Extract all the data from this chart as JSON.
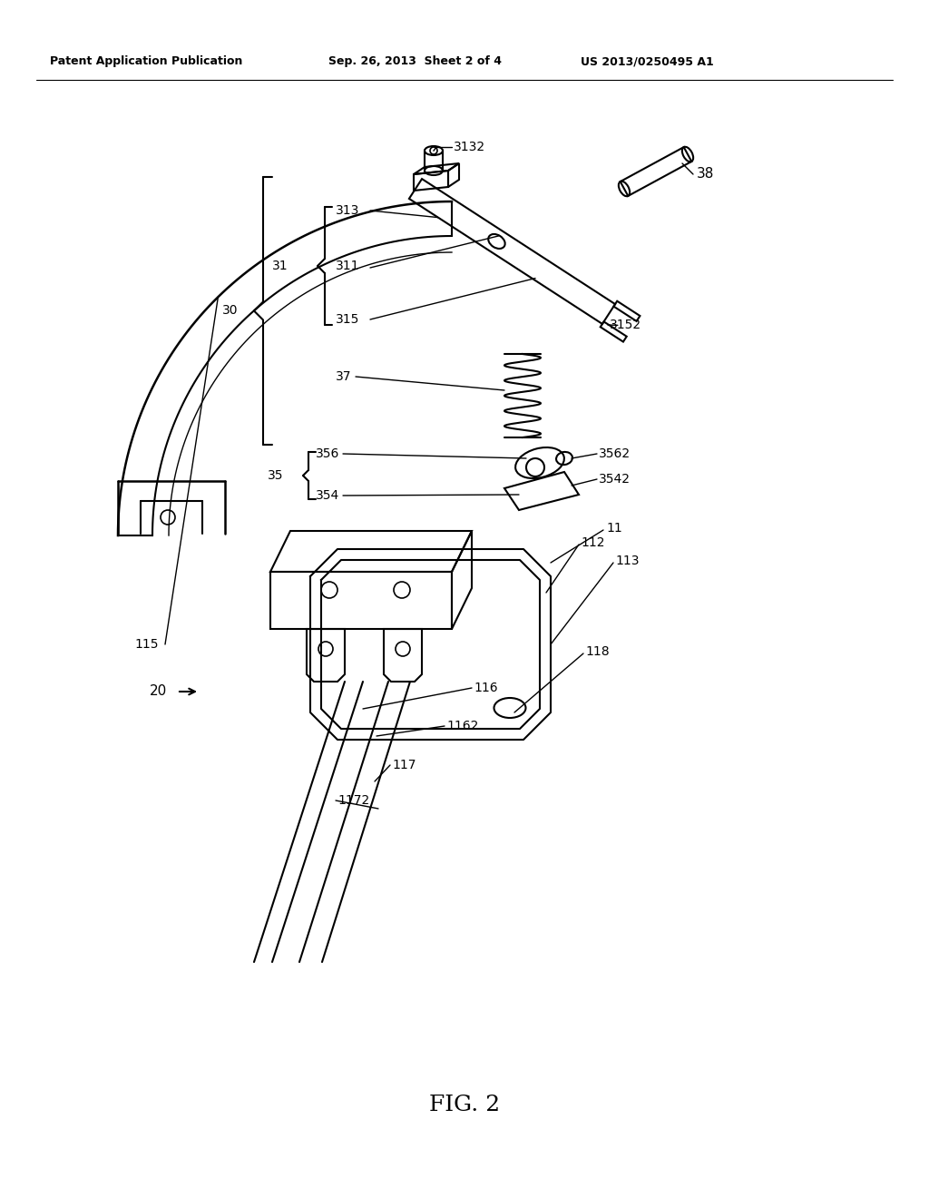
{
  "title": "FIG. 2",
  "header_left": "Patent Application Publication",
  "header_center": "Sep. 26, 2013  Sheet 2 of 4",
  "header_right": "US 2013/0250495 A1",
  "bg_color": "#ffffff",
  "line_color": "#000000"
}
